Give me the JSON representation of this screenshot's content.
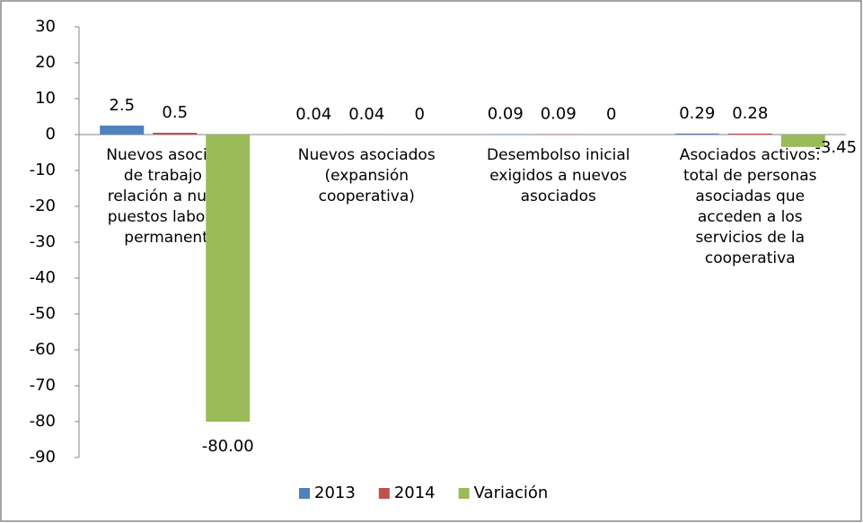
{
  "chart_data": {
    "type": "bar",
    "categories": [
      "Nuevos asociados de trabajo en relación a nuevos puestos laborales permanentes",
      "Nuevos asociados (expansión cooperativa)",
      "Desembolso inicial exigidos a nuevos asociados",
      "Asociados activos: total de personas asociadas que acceden a los servicios de la cooperativa"
    ],
    "series": [
      {
        "name": "2013",
        "color": "#4f81bd",
        "values": [
          2.5,
          0.04,
          0.09,
          0.29
        ]
      },
      {
        "name": "2014",
        "color": "#c0504d",
        "values": [
          0.5,
          0.04,
          0.09,
          0.28
        ]
      },
      {
        "name": "Variación",
        "color": "#9bbb59",
        "values": [
          -80,
          0,
          0,
          -3.45
        ],
        "value_labels": [
          "-80.00",
          "0",
          "0",
          "-3.45"
        ]
      }
    ],
    "ylim": [
      -90,
      30
    ],
    "yticks": [
      30,
      20,
      10,
      0,
      -10,
      -20,
      -30,
      -40,
      -50,
      -60,
      -70,
      -80,
      -90
    ],
    "legend": "bottom"
  }
}
